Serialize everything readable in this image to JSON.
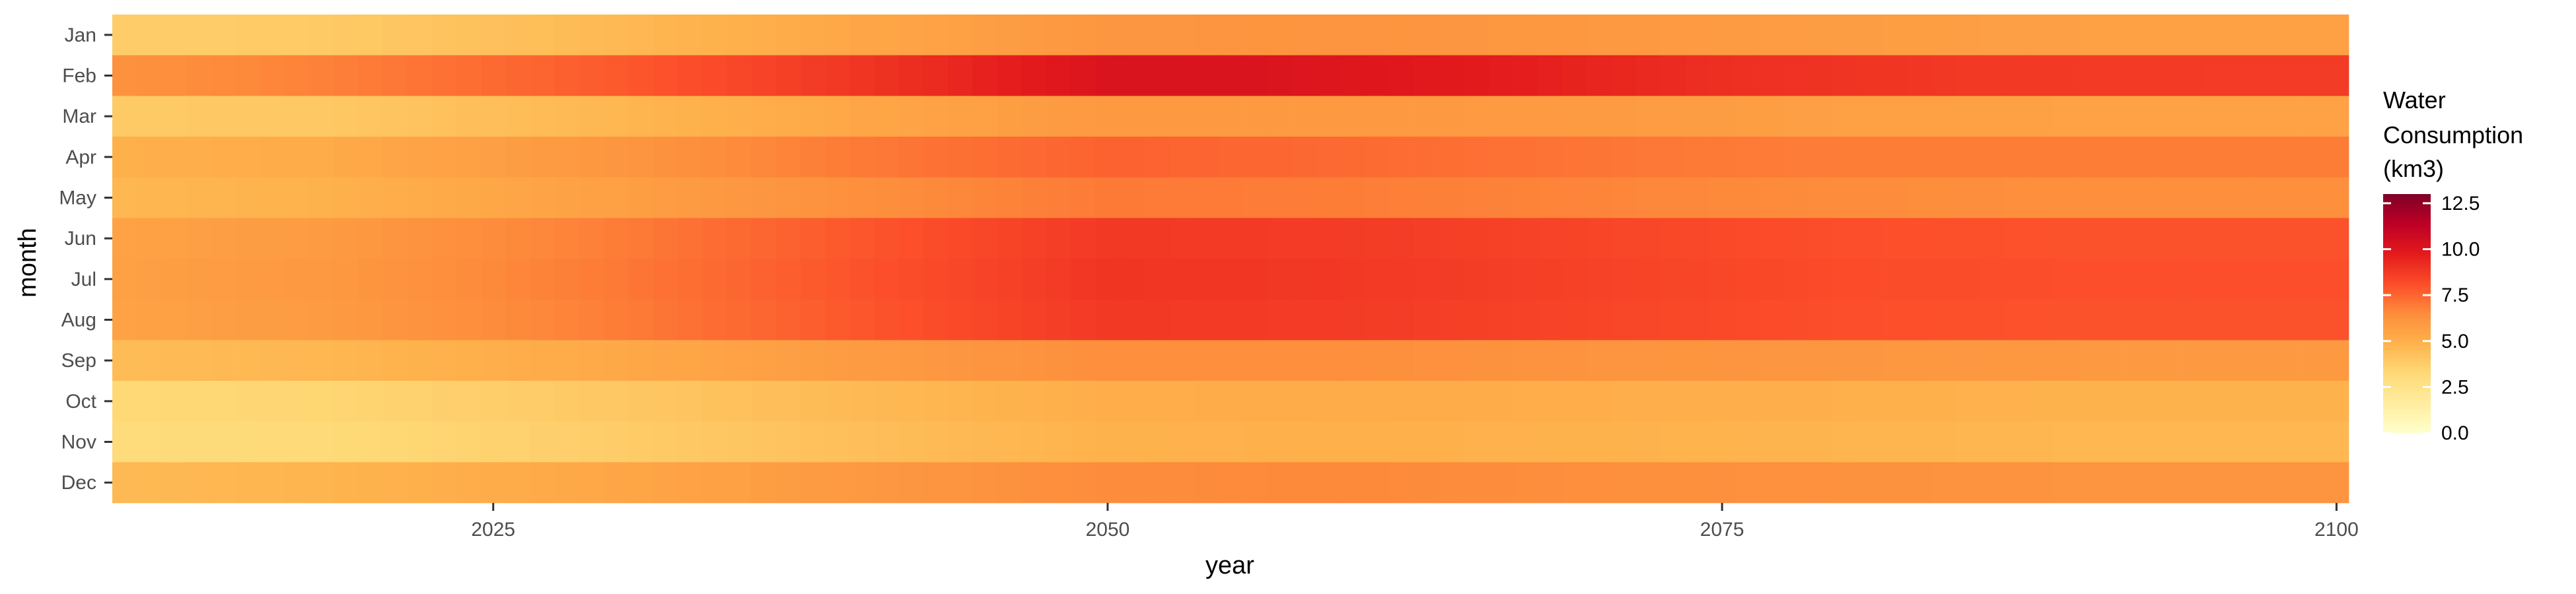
{
  "chart_data": {
    "type": "heatmap",
    "title": "",
    "xlabel": "year",
    "ylabel": "month",
    "x_start": 2010,
    "x_end": 2100,
    "xlim": [
      2009.5,
      2100.5
    ],
    "x_ticks": [
      2025,
      2050,
      2075,
      2100
    ],
    "x_tick_labels": [
      "2025",
      "2050",
      "2075",
      "2100"
    ],
    "months": [
      "Jan",
      "Feb",
      "Mar",
      "Apr",
      "May",
      "Jun",
      "Jul",
      "Aug",
      "Sep",
      "Oct",
      "Nov",
      "Dec"
    ],
    "monthly_profiles": [
      {
        "month": "Jan",
        "points": [
          [
            2010,
            3.8
          ],
          [
            2018,
            3.9
          ],
          [
            2030,
            4.6
          ],
          [
            2040,
            5.4
          ],
          [
            2050,
            6.1
          ],
          [
            2060,
            6.2
          ],
          [
            2070,
            6.0
          ],
          [
            2080,
            5.8
          ],
          [
            2090,
            5.7
          ],
          [
            2100,
            5.7
          ]
        ]
      },
      {
        "month": "Feb",
        "points": [
          [
            2010,
            6.3
          ],
          [
            2018,
            6.8
          ],
          [
            2030,
            7.8
          ],
          [
            2040,
            8.9
          ],
          [
            2050,
            10.2
          ],
          [
            2055,
            10.2
          ],
          [
            2065,
            9.8
          ],
          [
            2075,
            9.1
          ],
          [
            2085,
            8.8
          ],
          [
            2100,
            8.7
          ]
        ]
      },
      {
        "month": "Mar",
        "points": [
          [
            2010,
            3.9
          ],
          [
            2018,
            4.0
          ],
          [
            2030,
            4.7
          ],
          [
            2040,
            5.4
          ],
          [
            2050,
            6.0
          ],
          [
            2060,
            6.0
          ],
          [
            2070,
            5.9
          ],
          [
            2080,
            5.7
          ],
          [
            2090,
            5.6
          ],
          [
            2100,
            5.6
          ]
        ]
      },
      {
        "month": "Apr",
        "points": [
          [
            2010,
            5.0
          ],
          [
            2018,
            5.2
          ],
          [
            2030,
            6.1
          ],
          [
            2040,
            7.0
          ],
          [
            2050,
            7.6
          ],
          [
            2060,
            7.4
          ],
          [
            2070,
            7.1
          ],
          [
            2080,
            6.9
          ],
          [
            2090,
            6.9
          ],
          [
            2100,
            6.9
          ]
        ]
      },
      {
        "month": "May",
        "points": [
          [
            2010,
            4.7
          ],
          [
            2018,
            4.9
          ],
          [
            2030,
            5.7
          ],
          [
            2040,
            6.4
          ],
          [
            2050,
            7.0
          ],
          [
            2060,
            6.9
          ],
          [
            2070,
            6.7
          ],
          [
            2080,
            6.5
          ],
          [
            2090,
            6.4
          ],
          [
            2100,
            6.4
          ]
        ]
      },
      {
        "month": "Jun",
        "points": [
          [
            2010,
            5.6
          ],
          [
            2018,
            5.9
          ],
          [
            2030,
            6.9
          ],
          [
            2040,
            7.9
          ],
          [
            2050,
            8.8
          ],
          [
            2060,
            8.7
          ],
          [
            2070,
            8.4
          ],
          [
            2080,
            8.1
          ],
          [
            2090,
            8.0
          ],
          [
            2100,
            8.0
          ]
        ]
      },
      {
        "month": "Jul",
        "points": [
          [
            2010,
            5.7
          ],
          [
            2018,
            6.0
          ],
          [
            2030,
            7.0
          ],
          [
            2040,
            8.0
          ],
          [
            2050,
            8.9
          ],
          [
            2060,
            8.8
          ],
          [
            2070,
            8.5
          ],
          [
            2080,
            8.2
          ],
          [
            2090,
            8.1
          ],
          [
            2100,
            8.1
          ]
        ]
      },
      {
        "month": "Aug",
        "points": [
          [
            2010,
            5.6
          ],
          [
            2018,
            5.9
          ],
          [
            2030,
            6.9
          ],
          [
            2040,
            7.9
          ],
          [
            2050,
            8.8
          ],
          [
            2060,
            8.7
          ],
          [
            2070,
            8.4
          ],
          [
            2080,
            8.1
          ],
          [
            2090,
            8.0
          ],
          [
            2100,
            8.0
          ]
        ]
      },
      {
        "month": "Sep",
        "points": [
          [
            2010,
            4.5
          ],
          [
            2018,
            4.7
          ],
          [
            2030,
            5.3
          ],
          [
            2040,
            5.9
          ],
          [
            2050,
            6.4
          ],
          [
            2060,
            6.4
          ],
          [
            2070,
            6.2
          ],
          [
            2080,
            6.1
          ],
          [
            2090,
            6.0
          ],
          [
            2100,
            6.0
          ]
        ]
      },
      {
        "month": "Oct",
        "points": [
          [
            2010,
            3.3
          ],
          [
            2018,
            3.4
          ],
          [
            2030,
            4.0
          ],
          [
            2040,
            4.6
          ],
          [
            2050,
            5.1
          ],
          [
            2060,
            5.2
          ],
          [
            2070,
            5.1
          ],
          [
            2080,
            5.0
          ],
          [
            2090,
            4.9
          ],
          [
            2100,
            4.9
          ]
        ]
      },
      {
        "month": "Nov",
        "points": [
          [
            2010,
            3.1
          ],
          [
            2018,
            3.2
          ],
          [
            2030,
            3.8
          ],
          [
            2040,
            4.4
          ],
          [
            2050,
            4.9
          ],
          [
            2060,
            5.0
          ],
          [
            2070,
            4.9
          ],
          [
            2080,
            4.8
          ],
          [
            2090,
            4.7
          ],
          [
            2100,
            4.7
          ]
        ]
      },
      {
        "month": "Dec",
        "points": [
          [
            2010,
            4.6
          ],
          [
            2018,
            4.8
          ],
          [
            2030,
            5.4
          ],
          [
            2040,
            6.0
          ],
          [
            2050,
            6.5
          ],
          [
            2060,
            6.6
          ],
          [
            2070,
            6.4
          ],
          [
            2080,
            6.3
          ],
          [
            2090,
            6.2
          ],
          [
            2100,
            6.2
          ]
        ]
      }
    ],
    "legend": {
      "title_lines": [
        "Water",
        "Consumption",
        "(km3)"
      ],
      "placement": "right",
      "range": [
        0,
        13
      ],
      "ticks": [
        0.0,
        2.5,
        5.0,
        7.5,
        10.0,
        12.5
      ],
      "tick_labels": [
        "0.0",
        "2.5",
        "5.0",
        "7.5",
        "10.0",
        "12.5"
      ]
    },
    "color_scale": [
      {
        "value": 0.0,
        "color": "#ffffcc"
      },
      {
        "value": 1.6,
        "color": "#ffeda0"
      },
      {
        "value": 3.3,
        "color": "#fed976"
      },
      {
        "value": 4.9,
        "color": "#feb24c"
      },
      {
        "value": 6.5,
        "color": "#fd8d3c"
      },
      {
        "value": 8.1,
        "color": "#fc4e2a"
      },
      {
        "value": 9.8,
        "color": "#e31a1c"
      },
      {
        "value": 11.4,
        "color": "#bd0026"
      },
      {
        "value": 13.0,
        "color": "#800026"
      }
    ],
    "panel_background": "#ebebeb"
  }
}
